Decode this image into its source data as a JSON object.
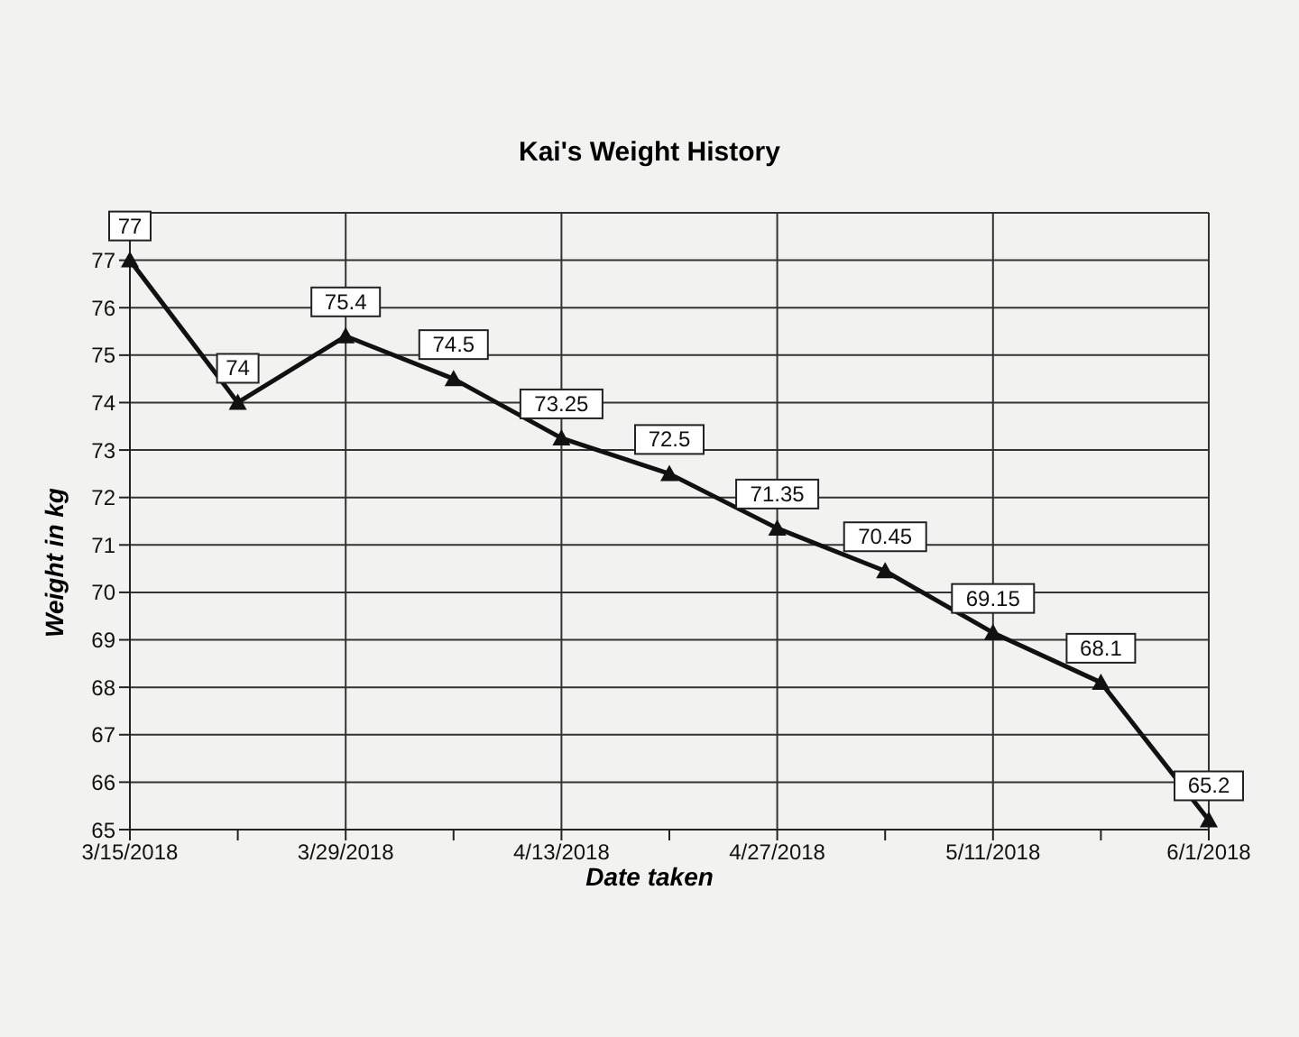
{
  "chart_data": {
    "type": "line",
    "title": "Kai's Weight History",
    "xlabel": "Date taken",
    "ylabel": "Weight in kg",
    "categories": [
      "3/15/2018",
      null,
      "3/29/2018",
      null,
      "4/13/2018",
      null,
      "4/27/2018",
      null,
      "5/11/2018",
      null,
      "6/1/2018"
    ],
    "series": [
      {
        "color": "#111111",
        "values": [
          77,
          74,
          75.4,
          74.5,
          73.25,
          72.5,
          71.35,
          70.45,
          69.15,
          68.1,
          65.2
        ]
      }
    ],
    "ylim": [
      65,
      78
    ],
    "yticks": [
      65,
      66,
      67,
      68,
      69,
      70,
      71,
      72,
      73,
      74,
      75,
      76,
      77,
      {
        "value": 78,
        "label": null
      }
    ],
    "grid": true,
    "marker": "triangle",
    "line_style": "solid",
    "data_labels": true,
    "legend": false
  }
}
